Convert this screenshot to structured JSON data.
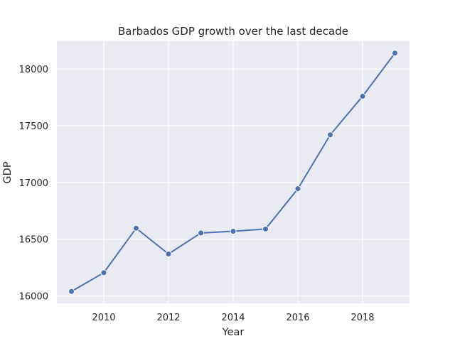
{
  "chart_data": {
    "type": "line",
    "title": "Barbados GDP growth over the last decade",
    "xlabel": "Year",
    "ylabel": "GDP",
    "x": [
      2009,
      2010,
      2011,
      2012,
      2013,
      2014,
      2015,
      2016,
      2017,
      2018,
      2019
    ],
    "series": [
      {
        "values": [
          16040,
          16205,
          16597,
          16370,
          16555,
          16570,
          16590,
          16945,
          17420,
          17760,
          18140
        ]
      }
    ],
    "xlim": [
      2008.55,
      2019.45
    ],
    "ylim": [
      15935,
      18245
    ],
    "xticks": [
      2010,
      2012,
      2014,
      2016,
      2018
    ],
    "yticks": [
      16000,
      16500,
      17000,
      17500,
      18000
    ],
    "grid": true,
    "background": "#eaeaf2",
    "line_color": "#4c72b0",
    "marker": "circle"
  }
}
